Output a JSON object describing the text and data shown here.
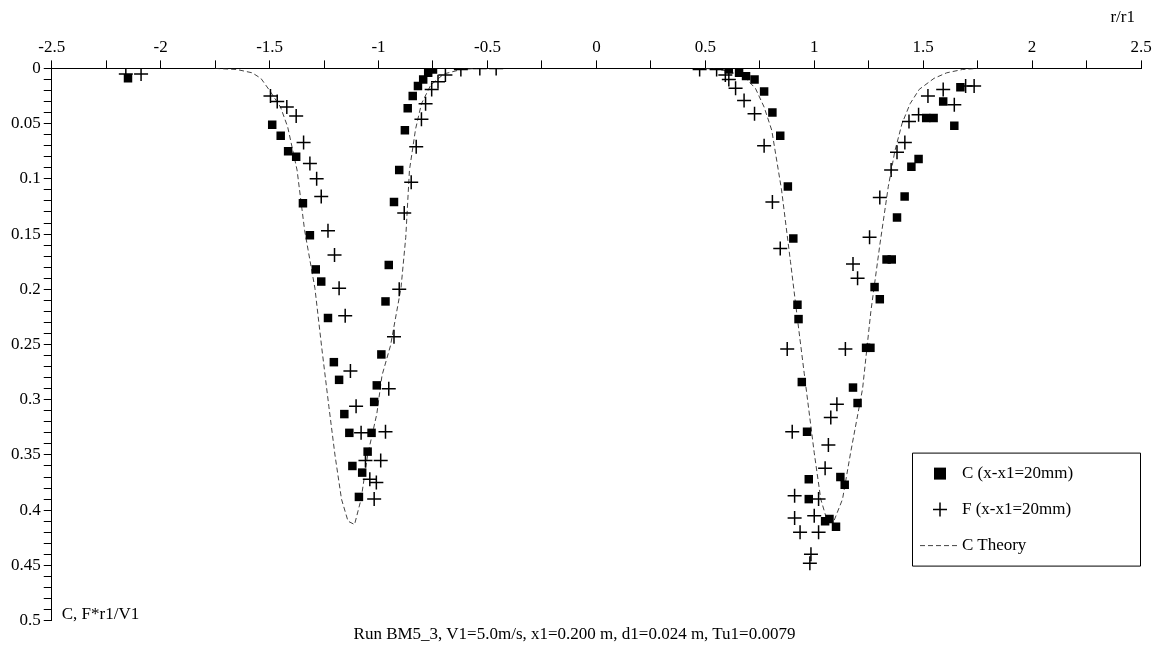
{
  "chart_data": {
    "type": "scatter",
    "title": "Run BM5_3, V1=5.0m/s, x1=0.200 m, d1=0.024 m, Tu1=0.0079",
    "xlabel": "r/r1",
    "ylabel": "C, F*r1/V1",
    "xlim": [
      -2.5,
      2.5
    ],
    "xticks": [
      -2.5,
      {
        "value": -2.25,
        "label": null
      },
      -2,
      {
        "value": -1.75,
        "label": null
      },
      -1.5,
      {
        "value": -1.25,
        "label": null
      },
      -1,
      {
        "value": -0.75,
        "label": null
      },
      -0.5,
      {
        "value": -0.25,
        "label": null
      },
      0,
      {
        "value": 0.25,
        "label": null
      },
      0.5,
      {
        "value": 0.75,
        "label": null
      },
      1,
      {
        "value": 1.25,
        "label": null
      },
      1.5,
      {
        "value": 1.75,
        "label": null
      },
      2,
      {
        "value": 2.25,
        "label": null
      },
      2.5
    ],
    "ylim": [
      0.5,
      0
    ],
    "yticks": [
      0,
      {
        "value": 0.01,
        "label": null
      },
      {
        "value": 0.02,
        "label": null
      },
      {
        "value": 0.03,
        "label": null
      },
      {
        "value": 0.04,
        "label": null
      },
      0.05,
      {
        "value": 0.06,
        "label": null
      },
      {
        "value": 0.07,
        "label": null
      },
      {
        "value": 0.08,
        "label": null
      },
      {
        "value": 0.09,
        "label": null
      },
      0.1,
      {
        "value": 0.11,
        "label": null
      },
      {
        "value": 0.12,
        "label": null
      },
      {
        "value": 0.13,
        "label": null
      },
      {
        "value": 0.14,
        "label": null
      },
      0.15,
      {
        "value": 0.16,
        "label": null
      },
      {
        "value": 0.17,
        "label": null
      },
      {
        "value": 0.18,
        "label": null
      },
      {
        "value": 0.19,
        "label": null
      },
      0.2,
      {
        "value": 0.21,
        "label": null
      },
      {
        "value": 0.22,
        "label": null
      },
      {
        "value": 0.23,
        "label": null
      },
      {
        "value": 0.24,
        "label": null
      },
      0.25,
      {
        "value": 0.26,
        "label": null
      },
      {
        "value": 0.27,
        "label": null
      },
      {
        "value": 0.28,
        "label": null
      },
      {
        "value": 0.29,
        "label": null
      },
      0.3,
      {
        "value": 0.31,
        "label": null
      },
      {
        "value": 0.32,
        "label": null
      },
      {
        "value": 0.33,
        "label": null
      },
      {
        "value": 0.34,
        "label": null
      },
      0.35,
      {
        "value": 0.36,
        "label": null
      },
      {
        "value": 0.37,
        "label": null
      },
      {
        "value": 0.38,
        "label": null
      },
      {
        "value": 0.39,
        "label": null
      },
      0.4,
      {
        "value": 0.41,
        "label": null
      },
      {
        "value": 0.42,
        "label": null
      },
      {
        "value": 0.43,
        "label": null
      },
      {
        "value": 0.44,
        "label": null
      },
      0.45,
      {
        "value": 0.46,
        "label": null
      },
      {
        "value": 0.47,
        "label": null
      },
      {
        "value": 0.48,
        "label": null
      },
      {
        "value": 0.49,
        "label": null
      },
      0.5
    ],
    "grid": false,
    "legend": "bottom right",
    "series": [
      {
        "name": "C (x-x1=20mm)",
        "marker": "square",
        "color": "#000000",
        "x": [
          -2.15,
          -1.488,
          -1.449,
          -1.415,
          -1.378,
          -1.347,
          -1.315,
          -1.288,
          -1.263,
          -1.232,
          -1.205,
          -1.181,
          -1.157,
          -1.134,
          -1.12,
          -1.09,
          -1.075,
          -1.05,
          -1.032,
          -1.02,
          -1.008,
          -0.987,
          -0.968,
          -0.953,
          -0.929,
          -0.905,
          -0.879,
          -0.866,
          -0.843,
          -0.819,
          -0.795,
          -0.772,
          -0.75,
          0.608,
          0.655,
          0.687,
          0.726,
          0.77,
          0.808,
          0.844,
          0.879,
          0.904,
          0.923,
          0.928,
          0.943,
          0.967,
          0.975,
          0.975,
          1.05,
          1.07,
          1.1,
          1.12,
          1.14,
          1.178,
          1.199,
          1.238,
          1.258,
          1.277,
          1.301,
          1.332,
          1.356,
          1.38,
          1.415,
          1.446,
          1.479,
          1.514,
          1.548,
          1.592,
          1.643,
          1.671
        ],
        "values": [
          0.009,
          0.051,
          0.061,
          0.075,
          0.08,
          0.122,
          0.151,
          0.182,
          0.193,
          0.226,
          0.266,
          0.282,
          0.313,
          0.33,
          0.36,
          0.388,
          0.366,
          0.347,
          0.33,
          0.302,
          0.287,
          0.259,
          0.211,
          0.178,
          0.121,
          0.092,
          0.056,
          0.036,
          0.025,
          0.016,
          0.01,
          0.004,
          0.001,
          0.001,
          0.004,
          0.007,
          0.01,
          0.021,
          0.04,
          0.061,
          0.107,
          0.154,
          0.214,
          0.227,
          0.284,
          0.329,
          0.372,
          0.39,
          0.41,
          0.408,
          0.415,
          0.37,
          0.377,
          0.289,
          0.303,
          0.253,
          0.253,
          0.198,
          0.209,
          0.173,
          0.173,
          0.135,
          0.116,
          0.089,
          0.082,
          0.045,
          0.045,
          0.03,
          0.052,
          0.017
        ]
      },
      {
        "name": "F (x-x1=20mm)",
        "marker": "cross",
        "color": "#000000",
        "x": [
          -2.16,
          -2.09,
          -1.496,
          -1.465,
          -1.421,
          -1.378,
          -1.344,
          -1.315,
          -1.284,
          -1.263,
          -1.232,
          -1.202,
          -1.181,
          -1.153,
          -1.129,
          -1.103,
          -1.08,
          -1.06,
          -1.04,
          -1.02,
          -1.01,
          -0.99,
          -0.968,
          -0.953,
          -0.929,
          -0.905,
          -0.882,
          -0.85,
          -0.827,
          -0.803,
          -0.784,
          -0.756,
          -0.727,
          -0.693,
          -0.622,
          -0.535,
          -0.46,
          0.474,
          0.552,
          0.592,
          0.608,
          0.639,
          0.678,
          0.726,
          0.77,
          0.808,
          0.844,
          0.876,
          0.899,
          0.91,
          0.91,
          0.935,
          0.98,
          0.985,
          1.0,
          1.02,
          1.02,
          1.05,
          1.065,
          1.076,
          1.104,
          1.143,
          1.178,
          1.199,
          1.254,
          1.301,
          1.353,
          1.38,
          1.416,
          1.435,
          1.479,
          1.522,
          1.592,
          1.643,
          1.695,
          1.734
        ],
        "values": [
          0.005,
          0.005,
          0.025,
          0.03,
          0.035,
          0.043,
          0.067,
          0.086,
          0.1,
          0.116,
          0.147,
          0.169,
          0.199,
          0.224,
          0.274,
          0.306,
          0.33,
          0.355,
          0.372,
          0.39,
          0.375,
          0.355,
          0.329,
          0.29,
          0.243,
          0.2,
          0.131,
          0.103,
          0.071,
          0.046,
          0.032,
          0.019,
          0.012,
          0.006,
          0.001,
          0.0,
          0.0,
          0.001,
          0.001,
          0.006,
          0.01,
          0.018,
          0.029,
          0.041,
          0.07,
          0.121,
          0.163,
          0.254,
          0.329,
          0.387,
          0.407,
          0.42,
          0.448,
          0.44,
          0.405,
          0.42,
          0.39,
          0.362,
          0.341,
          0.316,
          0.304,
          0.254,
          0.177,
          0.19,
          0.153,
          0.117,
          0.092,
          0.076,
          0.067,
          0.048,
          0.042,
          0.025,
          0.019,
          0.033,
          0.016,
          0.016
        ]
      },
      {
        "name": "C Theory",
        "type": "line",
        "marker": "none",
        "line_style": "dashed",
        "color": "#444444",
        "x": [
          -1.75,
          -1.65,
          -1.58,
          -1.54,
          -1.5,
          -1.45,
          -1.417,
          -1.374,
          -1.339,
          -1.292,
          -1.26,
          -1.228,
          -1.2,
          -1.17,
          -1.14,
          -1.11,
          -1.08,
          -1.05,
          -1.008,
          -0.984,
          -0.945,
          -0.897,
          -0.875,
          -0.858,
          -0.83,
          -0.803,
          -0.76,
          -0.7,
          -0.62,
          -0.55,
          null,
          0.5,
          0.6,
          0.68,
          0.73,
          0.77,
          0.805,
          0.85,
          0.891,
          0.925,
          0.954,
          1.0,
          1.03,
          1.06,
          1.09,
          1.13,
          1.167,
          1.222,
          1.26,
          1.301,
          1.34,
          1.37,
          1.403,
          1.44,
          1.482,
          1.55,
          1.608,
          1.68,
          1.75
        ],
        "values": [
          0,
          0.001,
          0.004,
          0.009,
          0.02,
          0.035,
          0.053,
          0.092,
          0.147,
          0.199,
          0.254,
          0.306,
          0.35,
          0.39,
          0.41,
          0.413,
          0.39,
          0.35,
          0.313,
          0.278,
          0.251,
          0.199,
          0.153,
          0.092,
          0.055,
          0.032,
          0.015,
          0.005,
          0.001,
          0,
          null,
          0,
          0.002,
          0.008,
          0.018,
          0.035,
          0.056,
          0.11,
          0.175,
          0.23,
          0.276,
          0.348,
          0.39,
          0.41,
          0.41,
          0.39,
          0.348,
          0.29,
          0.22,
          0.16,
          0.107,
          0.075,
          0.05,
          0.032,
          0.019,
          0.009,
          0.004,
          0.001,
          0
        ]
      }
    ]
  }
}
